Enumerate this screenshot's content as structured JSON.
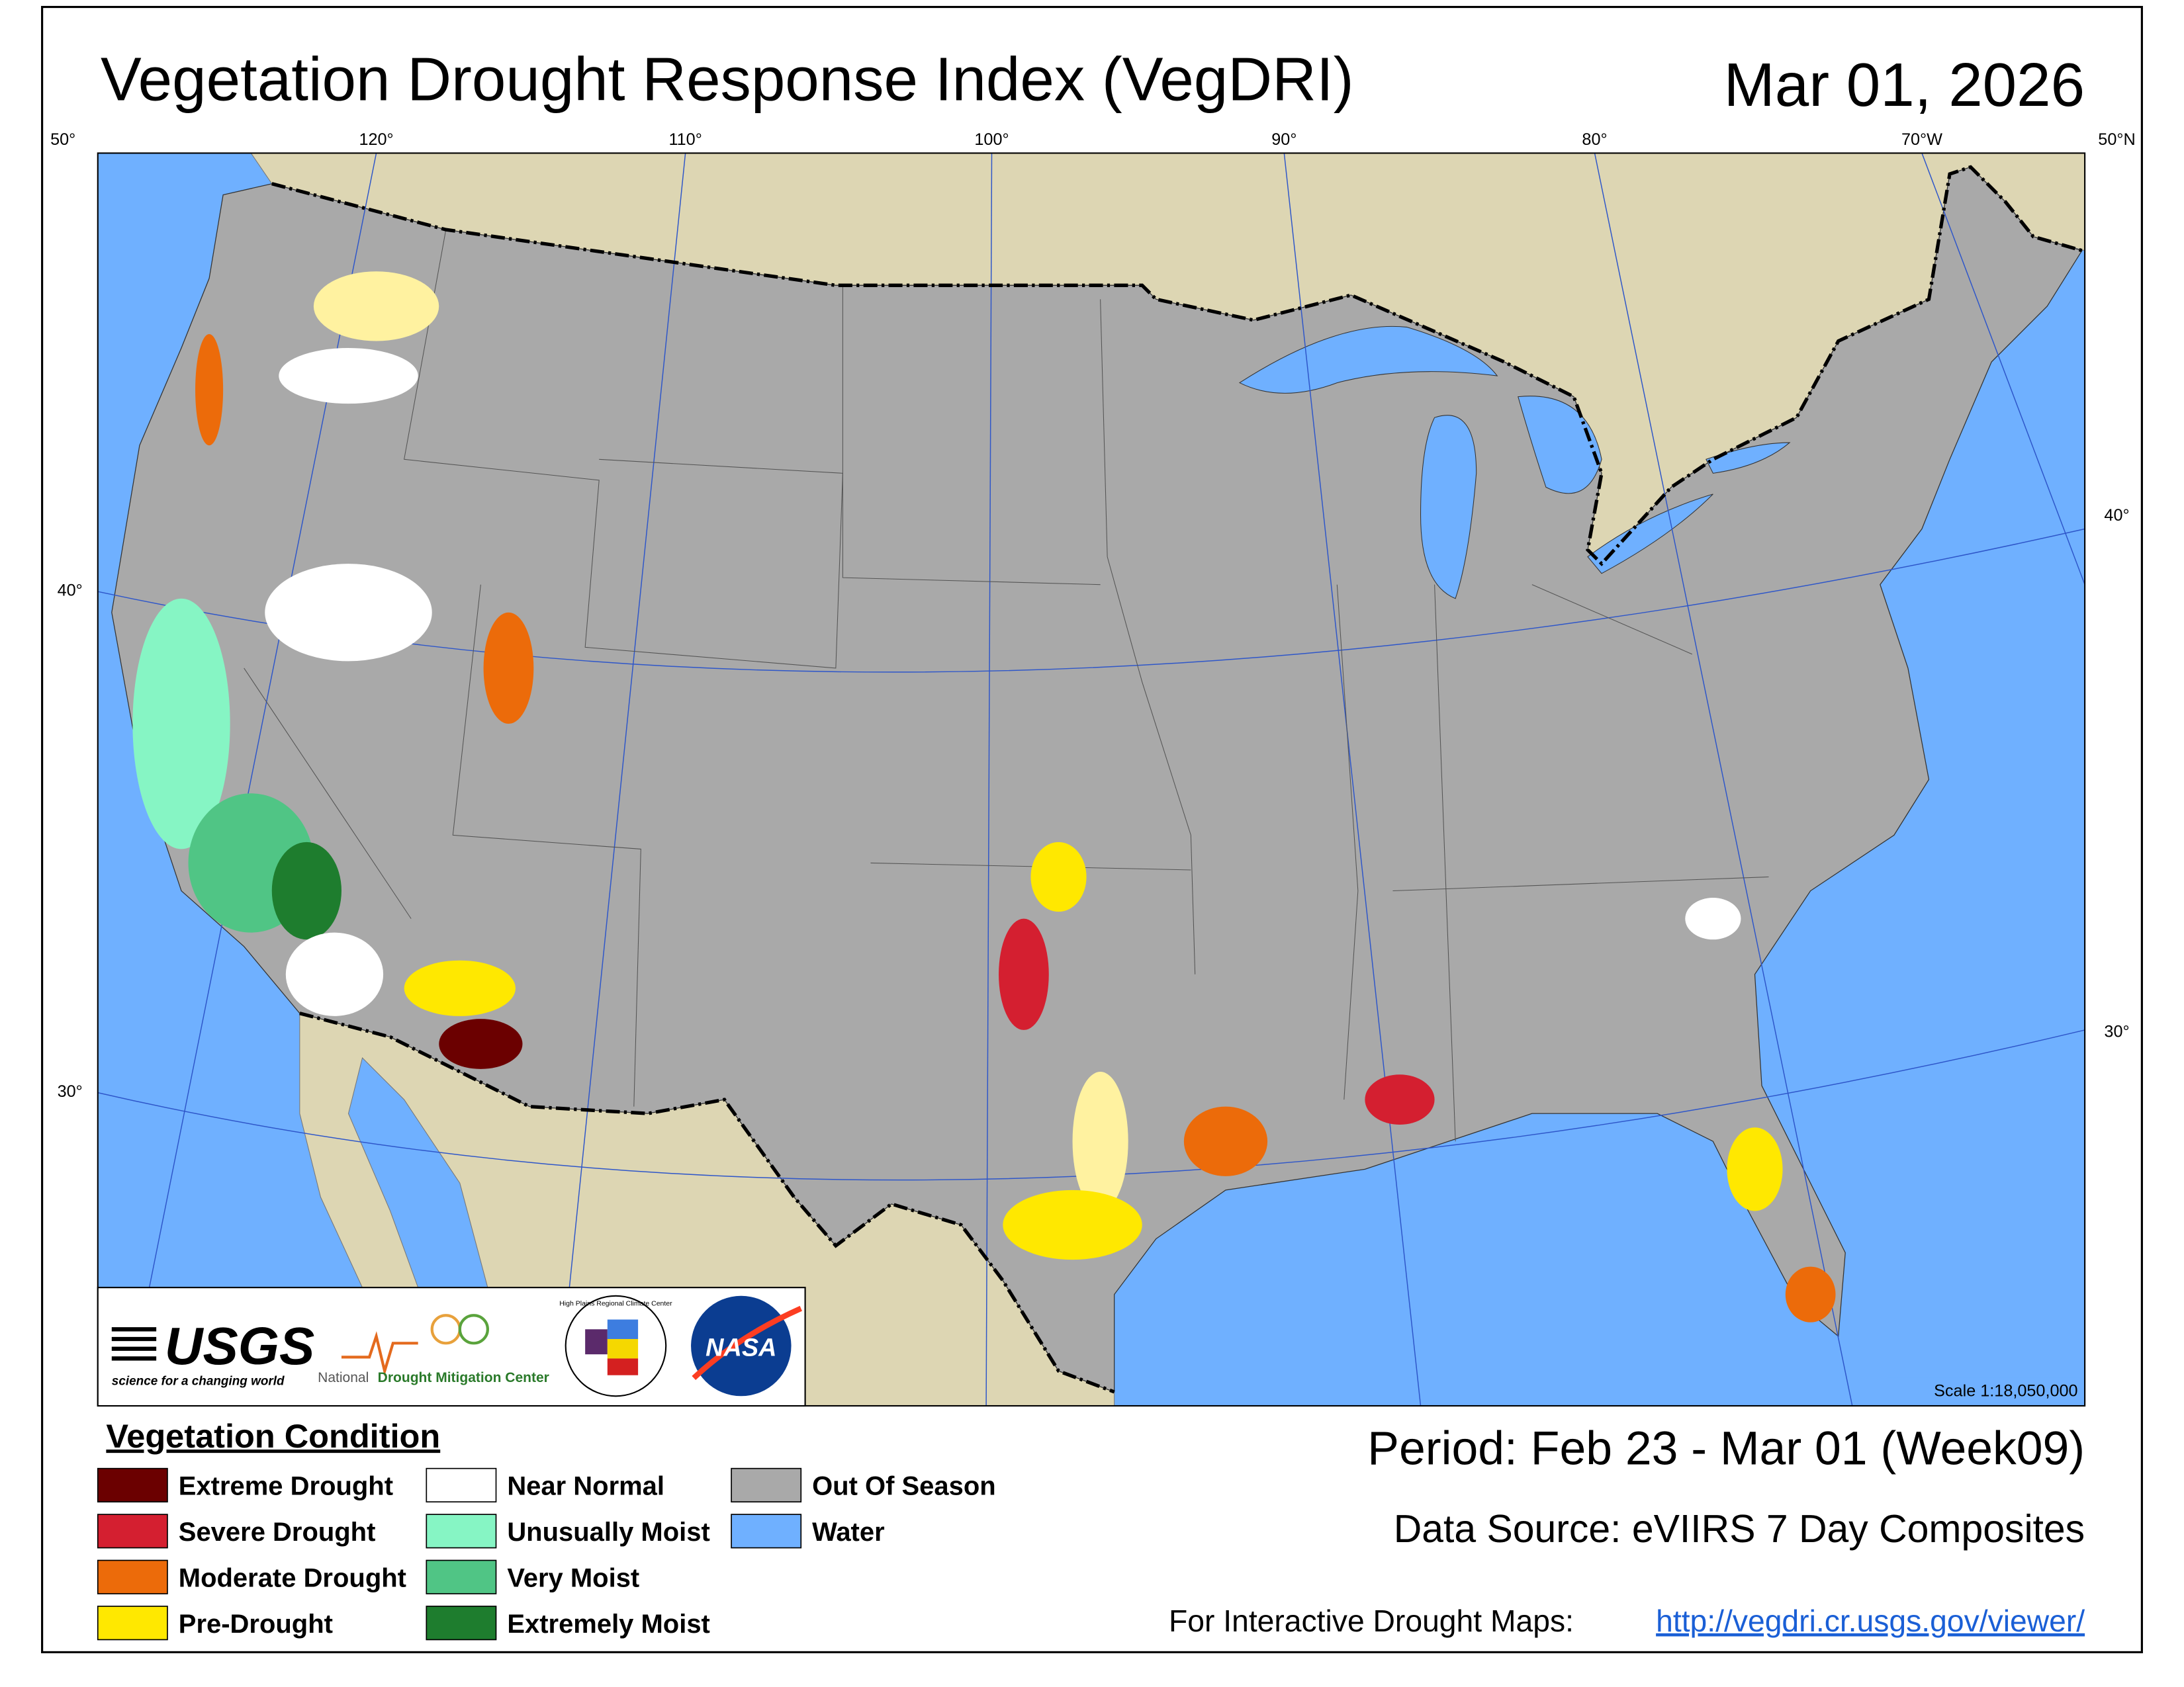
{
  "header": {
    "title": "Vegetation Drought Response Index (VegDRI)",
    "date": "Mar 01, 2026"
  },
  "graticule": {
    "top": [
      "50°",
      "120°",
      "110°",
      "100°",
      "90°",
      "80°",
      "70°W",
      "50°N"
    ],
    "left": [
      "40°",
      "30°"
    ],
    "right": [
      "40°",
      "30°"
    ]
  },
  "logos": {
    "usgs": "USGS",
    "usgs_tagline": "science for a changing world",
    "ndmc_prefix": "National",
    "ndmc_name": "Drought Mitigation Center",
    "hprcc": "High Plains Regional Climate Center",
    "nasa": "NASA"
  },
  "scale": "Scale 1:18,050,000",
  "legend": {
    "title": "Vegetation Condition",
    "items": [
      {
        "label": "Extreme Drought",
        "color": "#6b0000"
      },
      {
        "label": "Severe Drought",
        "color": "#d41f30"
      },
      {
        "label": "Moderate Drought",
        "color": "#ec6b0a"
      },
      {
        "label": "Pre-Drought",
        "color": "#ffe800"
      },
      {
        "label": "Near Normal",
        "color": "#ffffff"
      },
      {
        "label": "Unusually Moist",
        "color": "#86f5c4"
      },
      {
        "label": "Very Moist",
        "color": "#50c585"
      },
      {
        "label": "Extremely Moist",
        "color": "#1e7d2e"
      },
      {
        "label": "Out Of Season",
        "color": "#a9a9a9"
      },
      {
        "label": "Water",
        "color": "#6fb0ff"
      }
    ]
  },
  "footer": {
    "period": "Period:  Feb 23 - Mar 01 (Week09)",
    "source": "Data Source:  eVIIRS 7 Day Composites",
    "interactive_label": "For Interactive Drought Maps:",
    "interactive_url": "http://vegdri.cr.usgs.gov/viewer/"
  }
}
